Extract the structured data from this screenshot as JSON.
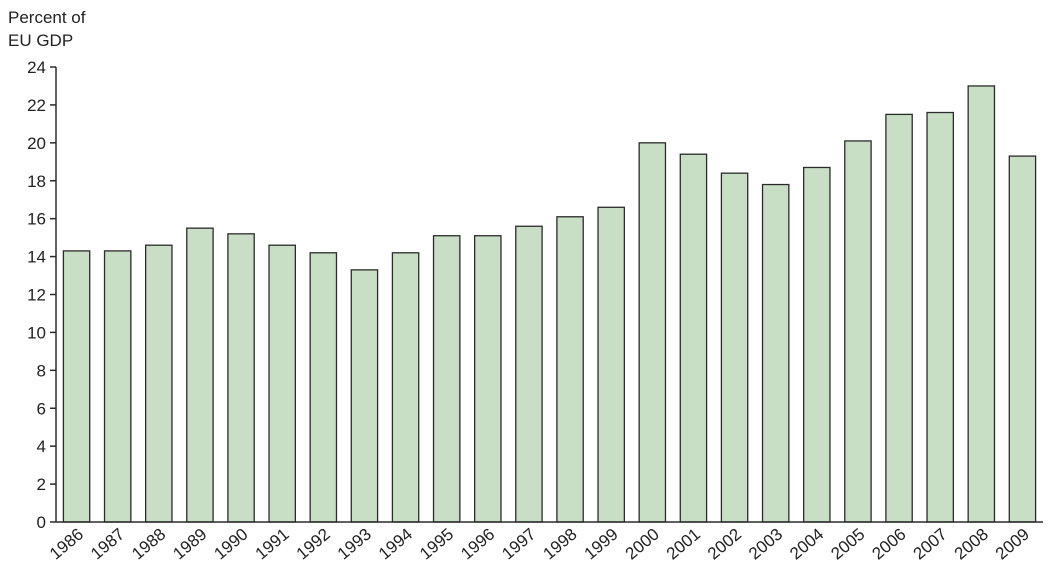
{
  "chart_data": {
    "type": "bar",
    "ylabel": [
      "Percent of",
      "EU GDP"
    ],
    "xlabel": "",
    "categories": [
      "1986",
      "1987",
      "1988",
      "1989",
      "1990",
      "1991",
      "1992",
      "1993",
      "1994",
      "1995",
      "1996",
      "1997",
      "1998",
      "1999",
      "2000",
      "2001",
      "2002",
      "2003",
      "2004",
      "2005",
      "2006",
      "2007",
      "2008",
      "2009"
    ],
    "values": [
      14.3,
      14.3,
      14.6,
      15.5,
      15.2,
      14.6,
      14.2,
      13.3,
      14.2,
      15.1,
      15.1,
      15.6,
      16.1,
      16.6,
      20.0,
      19.4,
      18.4,
      17.8,
      18.7,
      20.1,
      21.5,
      21.6,
      23.0,
      19.3
    ],
    "ylim": [
      0,
      24
    ],
    "yticks": [
      "0",
      "2",
      "4",
      "6",
      "8",
      "10",
      "12",
      "14",
      "16",
      "18",
      "20",
      "22",
      "24"
    ],
    "grid": false,
    "colors": {
      "bar_fill": "#c9dfc5",
      "bar_stroke": "#2b2b2b",
      "axis": "#2b2b2b",
      "text": "#222222"
    }
  }
}
